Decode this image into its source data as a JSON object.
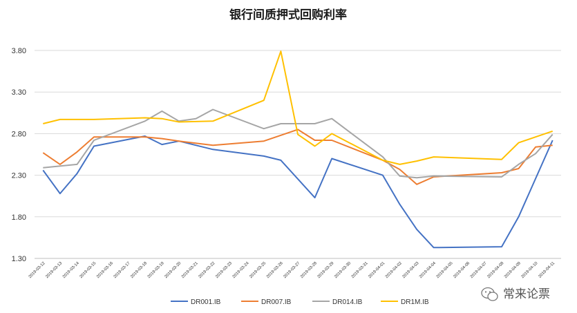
{
  "watermark": {
    "text": "常来论票",
    "icon": "wechat-icon"
  },
  "chart_data": {
    "type": "line",
    "title": "银行间质押式回购利率",
    "xlabel": "",
    "ylabel": "",
    "ylim": [
      1.3,
      3.8
    ],
    "yticks": [
      "1.30",
      "1.80",
      "2.30",
      "2.80",
      "3.30",
      "3.80"
    ],
    "grid": true,
    "legend_position": "bottom",
    "categories": [
      "2019-03-12",
      "2019-03-13",
      "2019-03-14",
      "2019-03-15",
      "2019-03-16",
      "2019-03-17",
      "2019-03-18",
      "2019-03-19",
      "2019-03-20",
      "2019-03-21",
      "2019-03-22",
      "2019-03-23",
      "2019-03-24",
      "2019-03-25",
      "2019-03-26",
      "2019-03-27",
      "2019-03-28",
      "2019-03-29",
      "2019-03-30",
      "2019-03-31",
      "2019-04-01",
      "2019-04-02",
      "2019-04-03",
      "2019-04-04",
      "2019-04-05",
      "2019-04-06",
      "2019-04-07",
      "2019-04-08",
      "2019-04-09",
      "2019-04-10",
      "2019-04-11"
    ],
    "series": [
      {
        "name": "DR001.IB",
        "color": "#4472C4",
        "values": [
          2.36,
          2.08,
          2.32,
          2.65,
          null,
          null,
          2.77,
          2.67,
          2.71,
          null,
          2.61,
          null,
          null,
          2.53,
          2.48,
          null,
          2.03,
          2.5,
          null,
          null,
          2.3,
          1.95,
          1.65,
          1.43,
          null,
          null,
          null,
          1.44,
          1.8,
          2.26,
          2.72
        ]
      },
      {
        "name": "DR007.IB",
        "color": "#ED7D31",
        "values": [
          2.57,
          2.43,
          2.58,
          2.76,
          null,
          null,
          2.76,
          2.74,
          2.71,
          null,
          2.66,
          null,
          null,
          2.71,
          2.78,
          2.85,
          2.72,
          2.72,
          null,
          null,
          2.48,
          2.37,
          2.19,
          2.28,
          null,
          null,
          null,
          2.33,
          2.38,
          2.64,
          2.66
        ]
      },
      {
        "name": "DR014.IB",
        "color": "#A5A5A5",
        "values": [
          2.39,
          null,
          2.43,
          2.72,
          null,
          null,
          2.95,
          3.07,
          2.95,
          2.98,
          3.09,
          null,
          null,
          2.86,
          2.92,
          null,
          2.92,
          2.98,
          null,
          null,
          2.52,
          2.29,
          2.27,
          2.29,
          null,
          null,
          null,
          2.28,
          2.43,
          2.56,
          2.79
        ]
      },
      {
        "name": "DR1M.IB",
        "color": "#FFC000",
        "values": [
          2.92,
          2.97,
          null,
          2.97,
          null,
          null,
          2.99,
          2.98,
          2.94,
          null,
          2.95,
          null,
          null,
          3.2,
          3.79,
          2.79,
          2.65,
          2.8,
          null,
          null,
          2.48,
          2.43,
          2.47,
          2.52,
          null,
          null,
          null,
          2.49,
          2.69,
          2.76,
          2.83
        ]
      }
    ]
  }
}
